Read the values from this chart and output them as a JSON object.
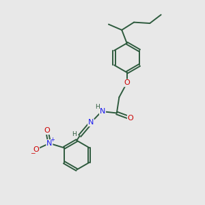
{
  "bg_color": "#e8e8e8",
  "bond_color": "#2d5a3d",
  "atom_colors": {
    "O": "#cc0000",
    "N": "#1a1aee",
    "C": "#2d5a3d",
    "H": "#2d5a3d"
  },
  "bond_width": 1.4,
  "font_size_atom": 8.0,
  "font_size_small": 6.5,
  "figsize": [
    3.0,
    3.0
  ],
  "dpi": 100
}
